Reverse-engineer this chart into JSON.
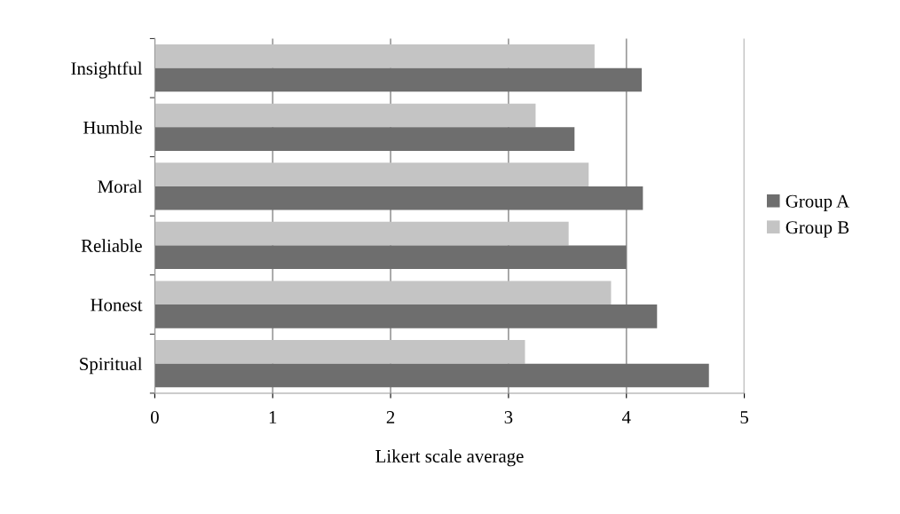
{
  "chart_data": {
    "type": "bar",
    "orientation": "horizontal",
    "xlabel": "Likert scale average",
    "categories": [
      "Insightful",
      "Humble",
      "Moral",
      "Reliable",
      "Honest",
      "Spiritual"
    ],
    "series": [
      {
        "name": "Group B",
        "color": "#c4c4c4",
        "values": [
          3.73,
          3.23,
          3.68,
          3.51,
          3.87,
          3.14
        ]
      },
      {
        "name": "Group A",
        "color": "#6e6e6e",
        "values": [
          4.13,
          3.56,
          4.14,
          4.0,
          4.26,
          4.7
        ]
      }
    ],
    "xlim": [
      0,
      5
    ],
    "xticks": [
      0,
      1,
      2,
      3,
      4,
      5
    ],
    "grid": "x",
    "legend": "right"
  }
}
